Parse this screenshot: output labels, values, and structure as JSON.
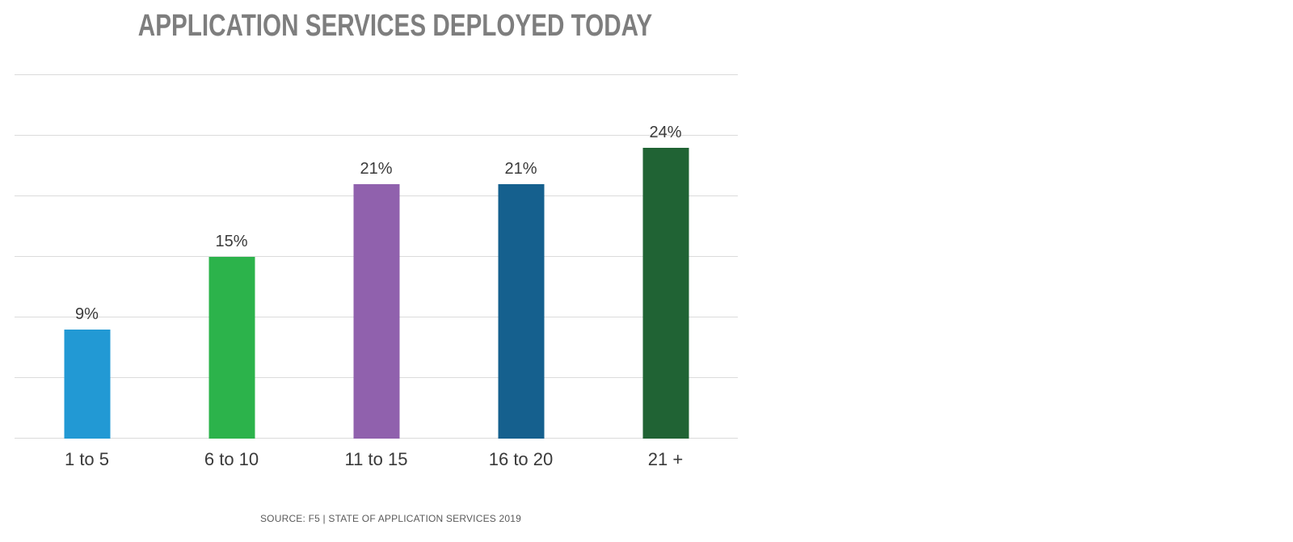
{
  "chart_data": {
    "type": "bar",
    "title": "APPLICATION SERVICES DEPLOYED TODAY",
    "categories": [
      "1 to 5",
      "6 to 10",
      "11 to 15",
      "16 to 20",
      "21 +"
    ],
    "values": [
      9,
      15,
      21,
      21,
      24
    ],
    "value_labels": [
      "9%",
      "15%",
      "21%",
      "21%",
      "24%"
    ],
    "bar_colors": [
      "#2299d4",
      "#2cb34b",
      "#9061ad",
      "#15608e",
      "#206334"
    ],
    "xlabel": "",
    "ylabel": "",
    "ylim": [
      0,
      30
    ],
    "gridline_step": 5,
    "grid": true,
    "y_tick_labels_visible": false,
    "legend": "none",
    "source": "SOURCE: F5 | STATE OF APPLICATION SERVICES 2019"
  },
  "colors": {
    "background": "#ffffff",
    "title_text": "#7e7e7e",
    "gridline": "#dbdbdb",
    "label_text": "#3a3a3a",
    "source_text": "#5a5a5a"
  }
}
